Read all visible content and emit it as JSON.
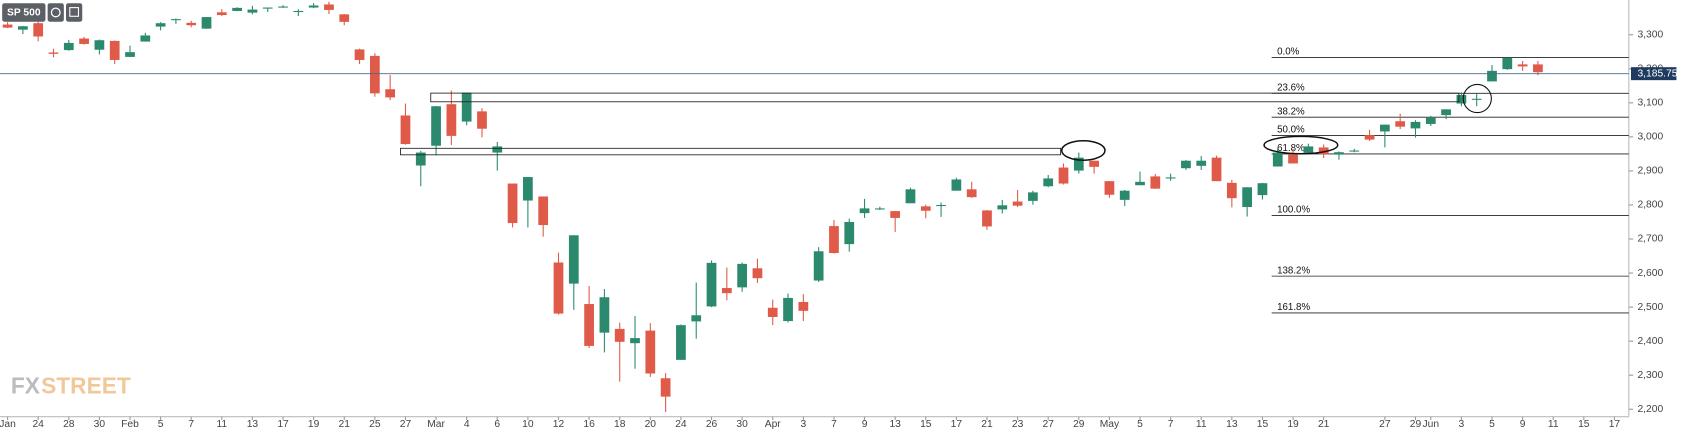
{
  "chart_data": {
    "type": "candlestick",
    "symbol": "SP 500",
    "watermark": [
      "FX",
      "STREET"
    ],
    "categories": [
      "Jan",
      null,
      "24",
      null,
      "28",
      null,
      "30",
      null,
      "Feb",
      null,
      "5",
      null,
      "7",
      null,
      "11",
      null,
      "13",
      null,
      "17",
      null,
      "19",
      null,
      "21",
      null,
      "25",
      null,
      "27",
      null,
      "Mar",
      null,
      "4",
      null,
      "6",
      null,
      "10",
      null,
      "12",
      null,
      "16",
      null,
      "18",
      null,
      "20",
      null,
      "24",
      null,
      "26",
      null,
      "30",
      null,
      "Apr",
      null,
      "3",
      null,
      "7",
      null,
      "9",
      null,
      "13",
      null,
      "15",
      null,
      "17",
      null,
      "21",
      null,
      "23",
      null,
      "27",
      null,
      "29",
      null,
      "May",
      null,
      "5",
      null,
      "7",
      null,
      "11",
      null,
      "13",
      null,
      "15",
      null,
      "19",
      null,
      "21",
      null,
      null,
      null,
      "27",
      null,
      "29",
      "Jun",
      null,
      "3",
      null,
      "5",
      null,
      "9",
      null,
      "11",
      null,
      "15",
      null,
      "17"
    ],
    "open": [
      3330,
      3315,
      3334,
      3248,
      3255,
      3289,
      3256,
      3282,
      3235,
      3280,
      3324,
      3344,
      3335,
      3318,
      3366,
      3370,
      3365,
      3378,
      3382,
      3370,
      3380,
      3389,
      3360,
      3257,
      3238,
      3140,
      3063,
      2916,
      2974,
      3096,
      3045,
      3075,
      2954,
      2863,
      2813,
      2825,
      2631,
      2569,
      2509,
      2425,
      2436,
      2394,
      2431,
      2291,
      2345,
      2458,
      2502,
      2556,
      2558,
      2614,
      2498,
      2459,
      2515,
      2578,
      2738,
      2685,
      2776,
      2790,
      2782,
      2805,
      2796,
      2799,
      2842,
      2846,
      2784,
      2787,
      2810,
      2812,
      2855,
      2910,
      2901,
      2930,
      2870,
      2815,
      2858,
      2884,
      2879,
      2908,
      2915,
      2939,
      2865,
      2794,
      2829,
      2913,
      2948,
      2953,
      2969,
      2948,
      2960,
      3005,
      3016,
      3046,
      3025,
      3038,
      3064,
      3098,
      3112,
      3163,
      3199,
      3213,
      3213,
      null,
      null,
      null,
      null,
      null
    ],
    "high": [
      3337,
      3326,
      3338,
      3259,
      3285,
      3294,
      3286,
      3283,
      3268,
      3306,
      3337,
      3348,
      3341,
      3352,
      3375,
      3381,
      3385,
      3380,
      3387,
      3375,
      3393,
      3397,
      3361,
      3259,
      3246,
      3182,
      3098,
      2959,
      3091,
      3136,
      3130,
      3084,
      2985,
      2863,
      2882,
      2825,
      2660,
      2711,
      2562,
      2553,
      2454,
      2474,
      2453,
      2306,
      2449,
      2572,
      2637,
      2616,
      2631,
      2642,
      2522,
      2540,
      2538,
      2676,
      2756,
      2760,
      2818,
      2795,
      2782,
      2851,
      2801,
      2807,
      2880,
      2868,
      2785,
      2815,
      2844,
      2842,
      2888,
      2922,
      2954,
      2930,
      2870,
      2844,
      2898,
      2891,
      2892,
      2932,
      2944,
      2945,
      2874,
      2852,
      2865,
      2968,
      2965,
      2980,
      2978,
      2957,
      2965,
      3021,
      3036,
      3068,
      3049,
      3062,
      3081,
      3131,
      3128,
      3211,
      3232,
      3223,
      3223,
      null,
      null,
      null,
      null,
      null
    ],
    "low": [
      3320,
      3302,
      3281,
      3234,
      3253,
      3271,
      3242,
      3214,
      3235,
      3280,
      3313,
      3332,
      3322,
      3317,
      3355,
      3369,
      3360,
      3367,
      3379,
      3355,
      3378,
      3361,
      3328,
      3214,
      3118,
      3108,
      2977,
      2855,
      2946,
      2976,
      3034,
      2999,
      2901,
      2734,
      2734,
      2707,
      2478,
      2492,
      2380,
      2367,
      2281,
      2319,
      2295,
      2192,
      2345,
      2407,
      2500,
      2520,
      2545,
      2571,
      2447,
      2455,
      2459,
      2574,
      2657,
      2663,
      2762,
      2785,
      2721,
      2805,
      2761,
      2765,
      2842,
      2821,
      2727,
      2775,
      2794,
      2801,
      2852,
      2860,
      2892,
      2892,
      2821,
      2797,
      2863,
      2847,
      2871,
      2903,
      2903,
      2870,
      2793,
      2766,
      2816,
      2913,
      2922,
      2953,
      2938,
      2933,
      2955,
      2988,
      2969,
      3023,
      2998,
      3032,
      3052,
      3090,
      3090,
      3163,
      3197,
      3194,
      3181,
      null,
      null,
      null,
      null,
      null
    ],
    "close": [
      3321,
      3325,
      3295,
      3244,
      3276,
      3273,
      3284,
      3226,
      3249,
      3298,
      3334,
      3346,
      3328,
      3352,
      3358,
      3379,
      3374,
      3380,
      3383,
      3370,
      3386,
      3373,
      3338,
      3226,
      3128,
      3116,
      2979,
      2954,
      3090,
      3003,
      3130,
      3024,
      2972,
      2747,
      2882,
      2741,
      2481,
      2711,
      2386,
      2529,
      2398,
      2409,
      2305,
      2237,
      2447,
      2476,
      2630,
      2541,
      2627,
      2585,
      2471,
      2527,
      2489,
      2664,
      2659,
      2750,
      2790,
      2790,
      2762,
      2846,
      2783,
      2800,
      2875,
      2823,
      2737,
      2799,
      2798,
      2837,
      2878,
      2863,
      2939,
      2912,
      2830,
      2842,
      2868,
      2848,
      2881,
      2930,
      2930,
      2870,
      2820,
      2852,
      2864,
      2954,
      2922,
      2972,
      2949,
      2955,
      2960,
      2992,
      3036,
      3030,
      3044,
      3056,
      3081,
      3123,
      3112,
      3194,
      3232,
      3207,
      3190,
      null,
      null,
      null,
      null,
      null
    ],
    "up_color": "#2b8a6e",
    "down_color": "#df5a48",
    "last_price": {
      "value": 3185.75,
      "label": "3,185.75"
    },
    "fib_levels": [
      {
        "value": 3233,
        "label": "0.0%"
      },
      {
        "value": 3128,
        "label": "23.6%"
      },
      {
        "value": 3058,
        "label": "38.2%"
      },
      {
        "value": 3004,
        "label": "50.0%"
      },
      {
        "value": 2950,
        "label": "61.8%"
      },
      {
        "value": 2769,
        "label": "100.0%"
      },
      {
        "value": 2591,
        "label": "138.2%"
      },
      {
        "value": 2483,
        "label": "161.8%"
      }
    ],
    "ylim": [
      2178,
      3402
    ],
    "yticks": [
      {
        "value": 2200,
        "label": "2,200"
      },
      {
        "value": 2300,
        "label": "2,300"
      },
      {
        "value": 2400,
        "label": "2,400"
      },
      {
        "value": 2500,
        "label": "2,500"
      },
      {
        "value": 2600,
        "label": "2,600"
      },
      {
        "value": 2700,
        "label": "2,700"
      },
      {
        "value": 2800,
        "label": "2,800"
      },
      {
        "value": 2900,
        "label": "2,900"
      },
      {
        "value": 3000,
        "label": "3,000"
      },
      {
        "value": 3100,
        "label": "3,100"
      },
      {
        "value": 3200,
        "label": "3,200"
      },
      {
        "value": 3300,
        "label": "3,300"
      }
    ],
    "grid": false
  }
}
